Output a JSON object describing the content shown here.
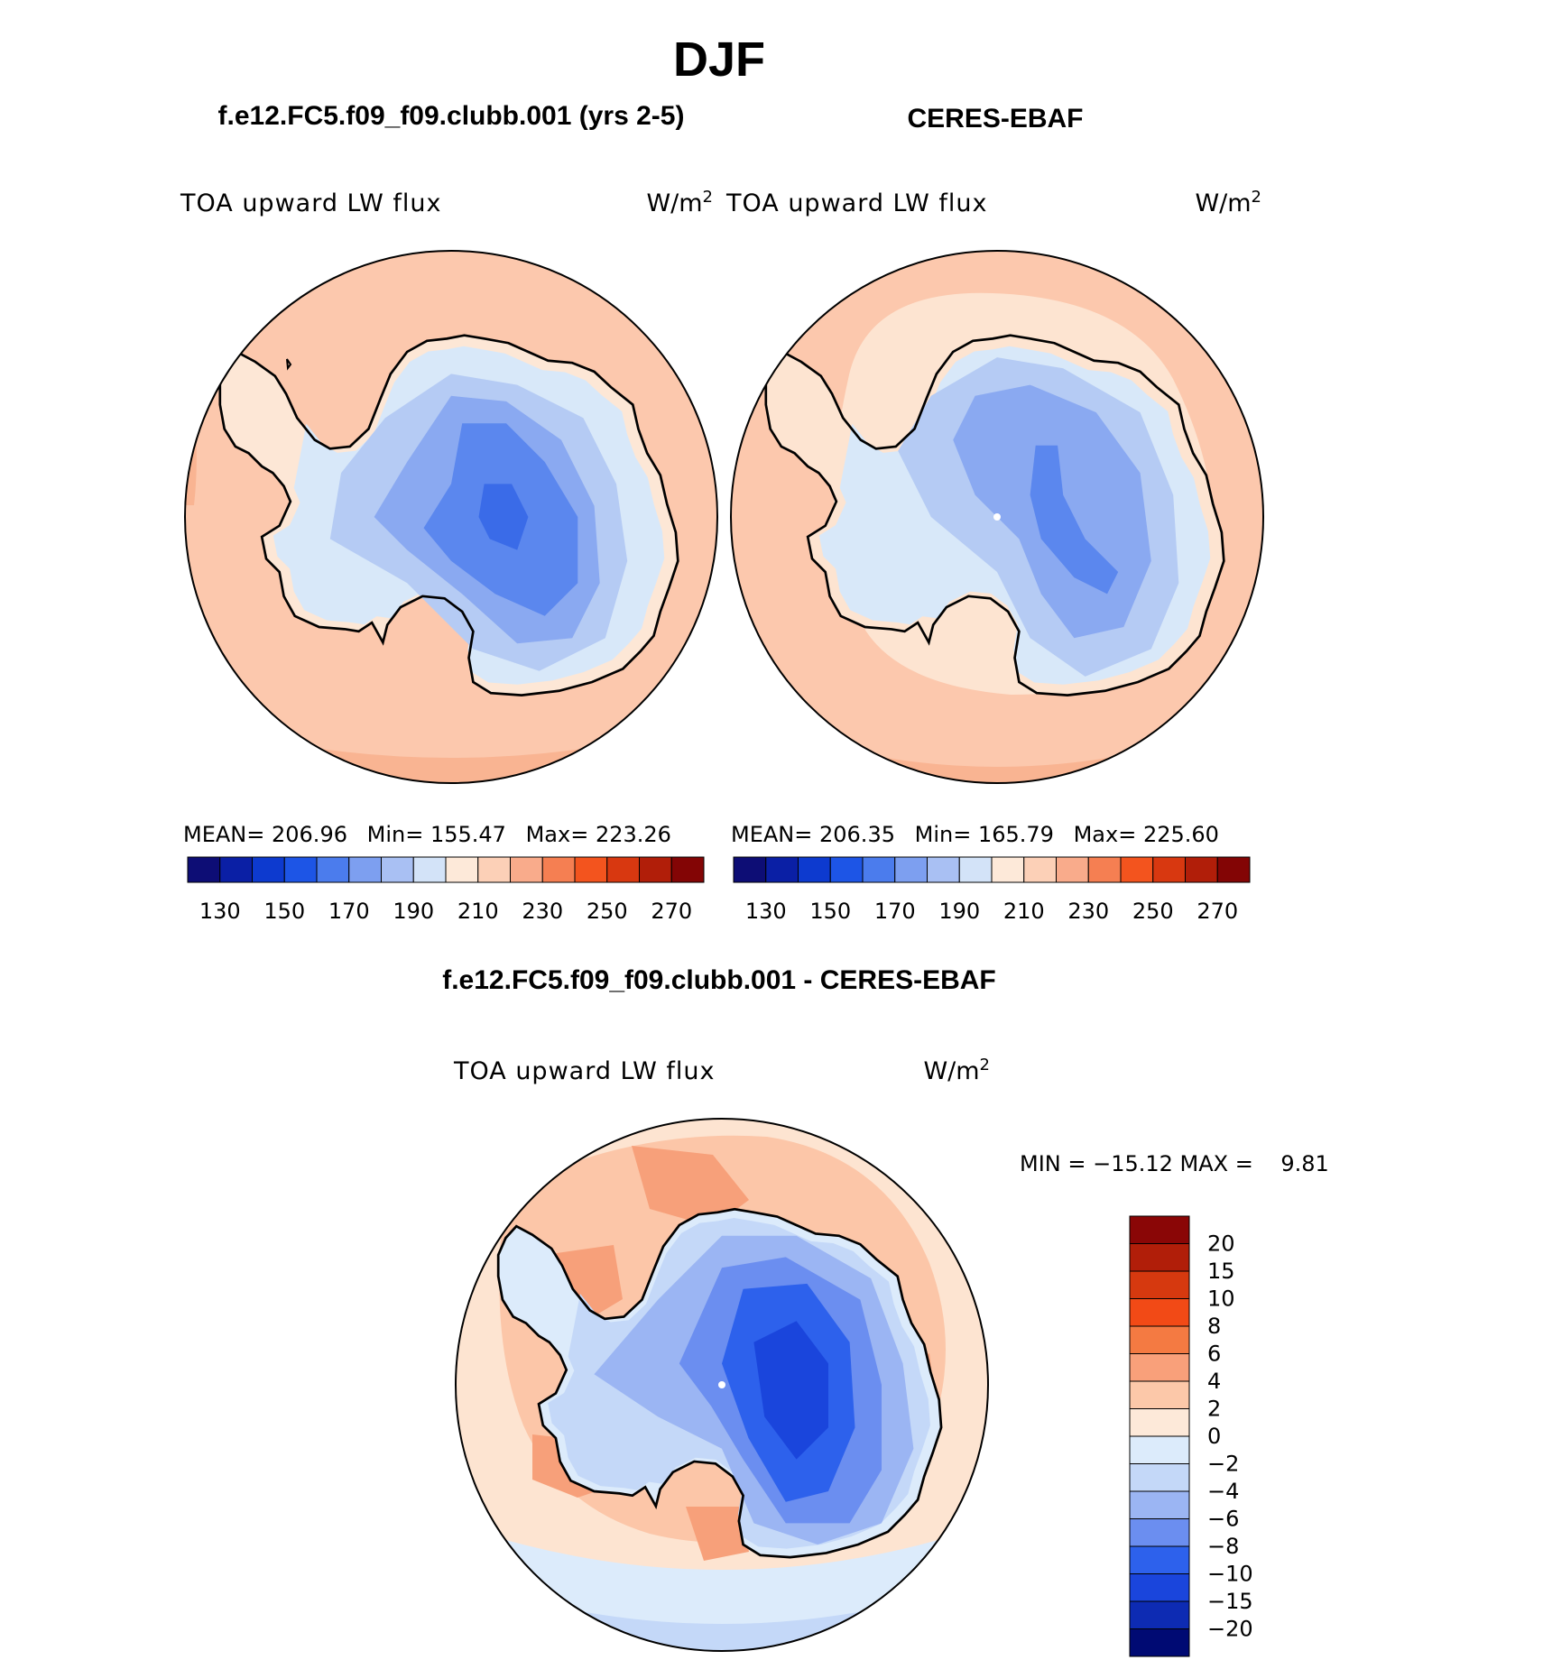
{
  "season": "DJF",
  "panels": {
    "model": {
      "heading": "f.e12.FC5.f09_f09.clubb.001 (yrs 2-5)",
      "variable": "TOA upward LW flux",
      "units_base": "W/m",
      "units_exp": "2",
      "stats": {
        "mean_label": "MEAN=",
        "mean": "206.96",
        "min_label": "Min=",
        "min": "155.47",
        "max_label": "Max=",
        "max": "223.26"
      }
    },
    "obs": {
      "heading": "CERES-EBAF",
      "variable": "TOA upward LW flux",
      "units_base": "W/m",
      "units_exp": "2",
      "stats": {
        "mean_label": "MEAN=",
        "mean": "206.35",
        "min_label": "Min=",
        "min": "165.79",
        "max_label": "Max=",
        "max": "225.60"
      }
    },
    "diff": {
      "heading": "f.e12.FC5.f09_f09.clubb.001 - CERES-EBAF",
      "variable": "TOA upward LW flux",
      "units_base": "W/m",
      "units_exp": "2",
      "minmax_text": "MIN = −15.12 MAX =    9.81"
    }
  },
  "colors": {
    "abs_scale": [
      "#0d0d75",
      "#0a1fa5",
      "#0d3acf",
      "#1d55e6",
      "#4b7ced",
      "#7d9ff0",
      "#a9c0f3",
      "#d3e3f8",
      "#fde9d9",
      "#fcd0b7",
      "#f9ab8b",
      "#f57f52",
      "#f3541e",
      "#d83810",
      "#b11e09",
      "#830505"
    ],
    "diff_scale": [
      "#000a73",
      "#0d2bb3",
      "#1a45dc",
      "#2d61ec",
      "#6b8ef0",
      "#9bb5f3",
      "#c4d8f8",
      "#dcebfb",
      "#fde9d9",
      "#fcc8a9",
      "#f9a07a",
      "#f47a42",
      "#f24a16",
      "#d6390f",
      "#b11e09",
      "#8a0606"
    ],
    "ocean_abs": "#fcc8ad",
    "ocean_obs_inner": "#fde4d1",
    "ocean_warm": "#f9b492",
    "land_outline": "#000000"
  },
  "chart_data": [
    {
      "type": "heatmap",
      "title": "f.e12.FC5.f09_f09.clubb.001 (yrs 2-5)",
      "variable": "TOA upward LW flux",
      "units": "W/m2",
      "projection": "south polar stereographic",
      "mean": 206.96,
      "min": 155.47,
      "max": 223.26,
      "colorbar_levels": [
        130,
        140,
        150,
        160,
        170,
        180,
        190,
        200,
        210,
        220,
        230,
        240,
        250,
        260,
        270
      ],
      "colorbar_tick_labels": [
        "130",
        "150",
        "170",
        "190",
        "210",
        "230",
        "250",
        "270"
      ]
    },
    {
      "type": "heatmap",
      "title": "CERES-EBAF",
      "variable": "TOA upward LW flux",
      "units": "W/m2",
      "projection": "south polar stereographic",
      "mean": 206.35,
      "min": 165.79,
      "max": 225.6,
      "colorbar_levels": [
        130,
        140,
        150,
        160,
        170,
        180,
        190,
        200,
        210,
        220,
        230,
        240,
        250,
        260,
        270
      ],
      "colorbar_tick_labels": [
        "130",
        "150",
        "170",
        "190",
        "210",
        "230",
        "250",
        "270"
      ]
    },
    {
      "type": "heatmap",
      "title": "f.e12.FC5.f09_f09.clubb.001 - CERES-EBAF",
      "variable": "TOA upward LW flux",
      "units": "W/m2",
      "projection": "south polar stereographic",
      "min": -15.12,
      "max": 9.81,
      "colorbar_levels": [
        -20,
        -15,
        -10,
        -8,
        -6,
        -4,
        -2,
        0,
        2,
        4,
        6,
        8,
        10,
        15,
        20
      ],
      "colorbar_tick_labels": [
        "−20",
        "−15",
        "−10",
        "−8",
        "−6",
        "−4",
        "−2",
        "0",
        "2",
        "4",
        "6",
        "8",
        "10",
        "15",
        "20"
      ]
    }
  ]
}
